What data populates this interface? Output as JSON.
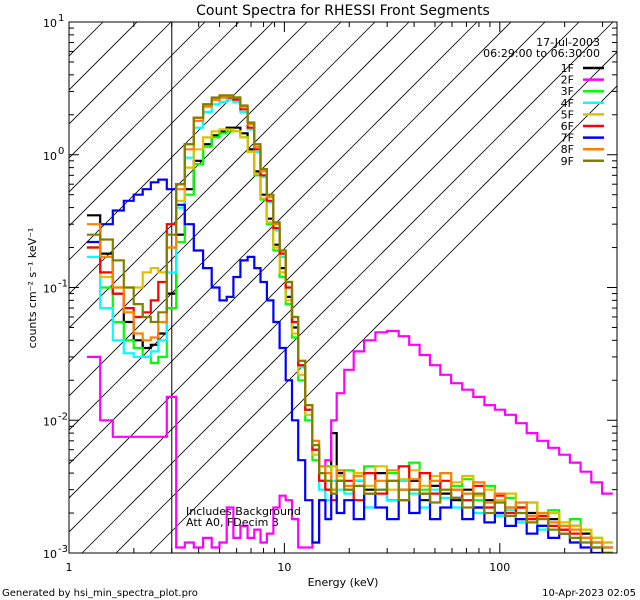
{
  "chart_data": {
    "type": "line",
    "title": "Count Spectra for RHESSI Front Segments",
    "xlabel": "Energy (keV)",
    "ylabel": "counts cm⁻² s⁻¹ keV⁻¹",
    "xscale": "log",
    "yscale": "log",
    "xlim": [
      1,
      350
    ],
    "ylim": [
      0.001,
      10
    ],
    "x_ticks": [
      {
        "value": 1,
        "label": "1"
      },
      {
        "value": 10,
        "label": "10"
      },
      {
        "value": 100,
        "label": "100"
      }
    ],
    "y_ticks": [
      {
        "value": 0.001,
        "base": "10",
        "exp": "-3"
      },
      {
        "value": 0.01,
        "base": "10",
        "exp": "-2"
      },
      {
        "value": 0.1,
        "base": "10",
        "exp": "-1"
      },
      {
        "value": 1,
        "base": "10",
        "exp": "0"
      },
      {
        "value": 10,
        "base": "10",
        "exp": "1"
      }
    ],
    "date": "17-Jul-2003",
    "time_range": "06:29:00 to 06:30:00",
    "annotations": [
      "Includes Background",
      "Att A0, FDecim 3"
    ],
    "excluded_region_max_keV": 3,
    "series": [
      {
        "name": "1F",
        "color": "#000000",
        "x": [
          1.3,
          1.5,
          1.7,
          1.9,
          2.1,
          2.3,
          2.5,
          2.7,
          3.0,
          3.3,
          3.6,
          4.0,
          4.4,
          4.8,
          5.2,
          5.6,
          6.0,
          6.5,
          7.0,
          7.5,
          8.0,
          8.6,
          9.2,
          9.8,
          10.5,
          11.2,
          12.0,
          13.0,
          14.0,
          15.0,
          16.0,
          17.0,
          18.0,
          20.0,
          22.0,
          25.0,
          28.0,
          32.0,
          36.0,
          40.0,
          45.0,
          50.0,
          56.0,
          63.0,
          71.0,
          80.0,
          90.0,
          100.0,
          112.0,
          126.0,
          141.0,
          158.0,
          178.0,
          200.0,
          224.0,
          251.0,
          282.0,
          316.0
        ],
        "y": [
          0.35,
          0.18,
          0.09,
          0.055,
          0.04,
          0.035,
          0.037,
          0.045,
          0.09,
          0.25,
          0.55,
          0.9,
          1.2,
          1.4,
          1.5,
          1.6,
          1.6,
          1.45,
          1.1,
          0.75,
          0.5,
          0.33,
          0.21,
          0.14,
          0.085,
          0.05,
          0.025,
          0.012,
          0.006,
          0.0035,
          0.003,
          0.008,
          0.004,
          0.003,
          0.0035,
          0.003,
          0.004,
          0.0025,
          0.003,
          0.0035,
          0.0025,
          0.0032,
          0.0028,
          0.0025,
          0.003,
          0.0022,
          0.0025,
          0.002,
          0.0022,
          0.0018,
          0.002,
          0.0016,
          0.0018,
          0.0015,
          0.0016,
          0.0014,
          0.0012,
          0.0011
        ]
      },
      {
        "name": "2F",
        "color": "#ff00ff",
        "x": [
          1.3,
          1.5,
          1.7,
          1.9,
          2.1,
          2.3,
          2.5,
          2.7,
          3.0,
          3.3,
          3.6,
          4.0,
          4.4,
          4.8,
          5.2,
          5.6,
          6.0,
          6.5,
          7.0,
          7.5,
          8.0,
          8.6,
          9.2,
          9.8,
          10.5,
          11.2,
          12.0,
          13.0,
          14.0,
          15.0,
          16.0,
          17.0,
          18.0,
          20.0,
          22.0,
          25.0,
          28.0,
          32.0,
          36.0,
          40.0,
          45.0,
          50.0,
          56.0,
          63.0,
          71.0,
          80.0,
          90.0,
          100.0,
          112.0,
          126.0,
          141.0,
          158.0,
          178.0,
          200.0,
          224.0,
          251.0,
          282.0,
          316.0
        ],
        "y": [
          0.03,
          0.01,
          0.0075,
          0.0075,
          0.0075,
          0.0075,
          0.0075,
          0.0075,
          0.015,
          0.0011,
          0.0012,
          0.0011,
          0.0013,
          0.0011,
          0.0012,
          0.0022,
          0.0013,
          0.0016,
          0.0013,
          0.0015,
          0.0012,
          0.0014,
          0.0022,
          0.0027,
          0.0025,
          0.0018,
          0.0011,
          0.0011,
          0.0012,
          0.0025,
          0.005,
          0.01,
          0.016,
          0.024,
          0.033,
          0.04,
          0.046,
          0.047,
          0.043,
          0.037,
          0.031,
          0.026,
          0.022,
          0.019,
          0.017,
          0.015,
          0.013,
          0.012,
          0.011,
          0.0095,
          0.008,
          0.007,
          0.0062,
          0.0055,
          0.0048,
          0.0041,
          0.0034,
          0.0028
        ]
      },
      {
        "name": "3F",
        "color": "#00ff00",
        "x": [
          1.3,
          1.5,
          1.7,
          1.9,
          2.1,
          2.3,
          2.5,
          2.7,
          3.0,
          3.3,
          3.6,
          4.0,
          4.4,
          4.8,
          5.2,
          5.6,
          6.0,
          6.5,
          7.0,
          7.5,
          8.0,
          8.6,
          9.2,
          9.8,
          10.5,
          11.2,
          12.0,
          13.0,
          14.0,
          15.0,
          16.0,
          17.0,
          18.0,
          20.0,
          22.0,
          25.0,
          28.0,
          32.0,
          36.0,
          40.0,
          45.0,
          50.0,
          56.0,
          63.0,
          71.0,
          80.0,
          90.0,
          100.0,
          112.0,
          126.0,
          141.0,
          158.0,
          178.0,
          200.0,
          224.0,
          251.0,
          282.0,
          316.0
        ],
        "y": [
          0.2,
          0.1,
          0.055,
          0.04,
          0.035,
          0.03,
          0.027,
          0.03,
          0.07,
          0.22,
          0.5,
          0.85,
          1.15,
          1.35,
          1.45,
          1.5,
          1.5,
          1.35,
          1.05,
          0.7,
          0.46,
          0.3,
          0.19,
          0.12,
          0.075,
          0.042,
          0.02,
          0.01,
          0.005,
          0.0035,
          0.0045,
          0.003,
          0.0035,
          0.0042,
          0.0035,
          0.0045,
          0.003,
          0.004,
          0.0035,
          0.0048,
          0.003,
          0.0035,
          0.004,
          0.0032,
          0.0036,
          0.0025,
          0.0032,
          0.0024,
          0.0026,
          0.0022,
          0.0024,
          0.0019,
          0.0021,
          0.0016,
          0.0018,
          0.0015,
          0.0013,
          0.0012
        ]
      },
      {
        "name": "4F",
        "color": "#00ffff",
        "x": [
          1.3,
          1.5,
          1.7,
          1.9,
          2.1,
          2.3,
          2.5,
          2.7,
          3.0,
          3.3,
          3.6,
          4.0,
          4.4,
          4.8,
          5.2,
          5.6,
          6.0,
          6.5,
          7.0,
          7.5,
          8.0,
          8.6,
          9.2,
          9.8,
          10.5,
          11.2,
          12.0,
          13.0,
          14.0,
          15.0,
          16.0,
          17.0,
          18.0,
          20.0,
          22.0,
          25.0,
          28.0,
          32.0,
          36.0,
          40.0,
          45.0,
          50.0,
          56.0,
          63.0,
          71.0,
          80.0,
          90.0,
          100.0,
          112.0,
          126.0,
          141.0,
          158.0,
          178.0,
          200.0,
          224.0,
          251.0,
          282.0,
          316.0
        ],
        "y": [
          0.17,
          0.07,
          0.04,
          0.032,
          0.03,
          0.03,
          0.033,
          0.04,
          0.13,
          0.4,
          0.95,
          1.6,
          2.1,
          2.4,
          2.5,
          2.6,
          2.5,
          2.1,
          1.55,
          1.05,
          0.68,
          0.44,
          0.27,
          0.17,
          0.1,
          0.055,
          0.025,
          0.012,
          0.006,
          0.003,
          0.0025,
          0.0035,
          0.003,
          0.0028,
          0.0035,
          0.0022,
          0.003,
          0.0025,
          0.0035,
          0.0028,
          0.0022,
          0.003,
          0.0026,
          0.0022,
          0.0028,
          0.002,
          0.0024,
          0.0019,
          0.0021,
          0.0017,
          0.0019,
          0.0015,
          0.0016,
          0.0014,
          0.0013,
          0.0012,
          0.0011,
          0.001
        ]
      },
      {
        "name": "5F",
        "color": "#e0c000",
        "x": [
          1.3,
          1.5,
          1.7,
          1.9,
          2.1,
          2.3,
          2.5,
          2.7,
          3.0,
          3.3,
          3.6,
          4.0,
          4.4,
          4.8,
          5.2,
          5.6,
          6.0,
          6.5,
          7.0,
          7.5,
          8.0,
          8.6,
          9.2,
          9.8,
          10.5,
          11.2,
          12.0,
          13.0,
          14.0,
          15.0,
          16.0,
          17.0,
          18.0,
          20.0,
          22.0,
          25.0,
          28.0,
          32.0,
          36.0,
          40.0,
          45.0,
          50.0,
          56.0,
          63.0,
          71.0,
          80.0,
          90.0,
          100.0,
          112.0,
          126.0,
          141.0,
          158.0,
          178.0,
          200.0,
          224.0,
          251.0,
          282.0,
          316.0
        ],
        "y": [
          0.2,
          0.12,
          0.1,
          0.1,
          0.1,
          0.13,
          0.14,
          0.13,
          0.2,
          0.45,
          0.8,
          1.1,
          1.35,
          1.5,
          1.55,
          1.55,
          1.5,
          1.35,
          1.05,
          0.72,
          0.47,
          0.31,
          0.2,
          0.13,
          0.08,
          0.045,
          0.022,
          0.011,
          0.0055,
          0.004,
          0.0035,
          0.0045,
          0.0038,
          0.003,
          0.004,
          0.0032,
          0.0045,
          0.003,
          0.0036,
          0.0042,
          0.0032,
          0.0038,
          0.003,
          0.0034,
          0.0038,
          0.0027,
          0.003,
          0.0025,
          0.0028,
          0.0022,
          0.0024,
          0.0019,
          0.002,
          0.0017,
          0.0016,
          0.0015,
          0.0013,
          0.0012
        ]
      },
      {
        "name": "6F",
        "color": "#ff0000",
        "x": [
          1.3,
          1.5,
          1.7,
          1.9,
          2.1,
          2.3,
          2.5,
          2.7,
          3.0,
          3.3,
          3.6,
          4.0,
          4.4,
          4.8,
          5.2,
          5.6,
          6.0,
          6.5,
          7.0,
          7.5,
          8.0,
          8.6,
          9.2,
          9.8,
          10.5,
          11.2,
          12.0,
          13.0,
          14.0,
          15.0,
          16.0,
          17.0,
          18.0,
          20.0,
          22.0,
          25.0,
          28.0,
          32.0,
          36.0,
          40.0,
          45.0,
          50.0,
          56.0,
          63.0,
          71.0,
          80.0,
          90.0,
          100.0,
          112.0,
          126.0,
          141.0,
          158.0,
          178.0,
          200.0,
          224.0,
          251.0,
          282.0,
          316.0
        ],
        "y": [
          0.2,
          0.13,
          0.09,
          0.07,
          0.06,
          0.065,
          0.08,
          0.11,
          0.3,
          0.6,
          1.2,
          1.9,
          2.4,
          2.6,
          2.7,
          2.7,
          2.6,
          2.2,
          1.6,
          1.1,
          0.7,
          0.45,
          0.28,
          0.18,
          0.1,
          0.055,
          0.026,
          0.012,
          0.006,
          0.0035,
          0.003,
          0.0025,
          0.0035,
          0.0035,
          0.0025,
          0.004,
          0.0028,
          0.0035,
          0.0045,
          0.003,
          0.004,
          0.0028,
          0.0035,
          0.003,
          0.0025,
          0.0032,
          0.0022,
          0.0027,
          0.002,
          0.0022,
          0.0018,
          0.0019,
          0.0016,
          0.0015,
          0.0014,
          0.0013,
          0.0011,
          0.001
        ]
      },
      {
        "name": "7F",
        "color": "#0000ff",
        "x": [
          1.3,
          1.5,
          1.7,
          1.9,
          2.1,
          2.3,
          2.5,
          2.7,
          3.0,
          3.3,
          3.6,
          4.0,
          4.4,
          4.8,
          5.2,
          5.6,
          6.0,
          6.5,
          7.0,
          7.5,
          8.0,
          8.6,
          9.2,
          9.8,
          10.5,
          11.2,
          12.0,
          13.0,
          14.0,
          15.0,
          16.0,
          17.0,
          18.0,
          20.0,
          22.0,
          25.0,
          28.0,
          32.0,
          36.0,
          40.0,
          45.0,
          50.0,
          56.0,
          63.0,
          71.0,
          80.0,
          90.0,
          100.0,
          112.0,
          126.0,
          141.0,
          158.0,
          178.0,
          200.0,
          224.0,
          251.0,
          282.0,
          316.0
        ],
        "y": [
          0.22,
          0.3,
          0.38,
          0.45,
          0.5,
          0.55,
          0.62,
          0.65,
          0.55,
          0.42,
          0.3,
          0.19,
          0.14,
          0.1,
          0.08,
          0.085,
          0.12,
          0.16,
          0.17,
          0.14,
          0.11,
          0.08,
          0.055,
          0.035,
          0.02,
          0.01,
          0.005,
          0.0025,
          0.0012,
          0.0025,
          0.0018,
          0.0028,
          0.002,
          0.0025,
          0.0018,
          0.0028,
          0.0022,
          0.0018,
          0.0025,
          0.002,
          0.0028,
          0.0018,
          0.0022,
          0.0026,
          0.0018,
          0.0022,
          0.0017,
          0.002,
          0.0016,
          0.0018,
          0.0014,
          0.0016,
          0.0013,
          0.0014,
          0.0012,
          0.0011,
          0.001,
          0.001
        ]
      },
      {
        "name": "8F",
        "color": "#ff8000",
        "x": [
          1.3,
          1.5,
          1.7,
          1.9,
          2.1,
          2.3,
          2.5,
          2.7,
          3.0,
          3.3,
          3.6,
          4.0,
          4.4,
          4.8,
          5.2,
          5.6,
          6.0,
          6.5,
          7.0,
          7.5,
          8.0,
          8.6,
          9.2,
          9.8,
          10.5,
          11.2,
          12.0,
          13.0,
          14.0,
          15.0,
          16.0,
          17.0,
          18.0,
          20.0,
          22.0,
          25.0,
          28.0,
          32.0,
          36.0,
          40.0,
          45.0,
          50.0,
          56.0,
          63.0,
          71.0,
          80.0,
          90.0,
          100.0,
          112.0,
          126.0,
          141.0,
          158.0,
          178.0,
          200.0,
          224.0,
          251.0,
          282.0,
          316.0
        ],
        "y": [
          0.3,
          0.17,
          0.1,
          0.065,
          0.045,
          0.04,
          0.042,
          0.055,
          0.2,
          0.55,
          1.1,
          1.8,
          2.3,
          2.6,
          2.7,
          2.75,
          2.7,
          2.3,
          1.7,
          1.15,
          0.75,
          0.48,
          0.3,
          0.19,
          0.11,
          0.06,
          0.028,
          0.013,
          0.007,
          0.0045,
          0.004,
          0.003,
          0.0042,
          0.0032,
          0.0038,
          0.0028,
          0.0035,
          0.0042,
          0.003,
          0.0036,
          0.0028,
          0.0035,
          0.004,
          0.003,
          0.0028,
          0.0034,
          0.0024,
          0.0028,
          0.0022,
          0.0024,
          0.0019,
          0.002,
          0.0017,
          0.0016,
          0.0015,
          0.0013,
          0.0012,
          0.0011
        ]
      },
      {
        "name": "9F",
        "color": "#808000",
        "x": [
          1.3,
          1.5,
          1.7,
          1.9,
          2.1,
          2.3,
          2.5,
          2.7,
          3.0,
          3.3,
          3.6,
          4.0,
          4.4,
          4.8,
          5.2,
          5.6,
          6.0,
          6.5,
          7.0,
          7.5,
          8.0,
          8.6,
          9.2,
          9.8,
          10.5,
          11.2,
          12.0,
          13.0,
          14.0,
          15.0,
          16.0,
          17.0,
          18.0,
          20.0,
          22.0,
          25.0,
          28.0,
          32.0,
          36.0,
          40.0,
          45.0,
          50.0,
          56.0,
          63.0,
          71.0,
          80.0,
          90.0,
          100.0,
          112.0,
          126.0,
          141.0,
          158.0,
          178.0,
          200.0,
          224.0,
          251.0,
          282.0,
          316.0
        ],
        "y": [
          0.25,
          0.23,
          0.16,
          0.1,
          0.075,
          0.06,
          0.055,
          0.065,
          0.25,
          0.6,
          1.2,
          1.9,
          2.4,
          2.7,
          2.8,
          2.8,
          2.7,
          2.35,
          1.75,
          1.2,
          0.78,
          0.5,
          0.31,
          0.19,
          0.11,
          0.06,
          0.028,
          0.013,
          0.0065,
          0.004,
          0.0035,
          0.0028,
          0.0035,
          0.003,
          0.0032,
          0.0028,
          0.003,
          0.0035,
          0.0025,
          0.003,
          0.0028,
          0.0024,
          0.003,
          0.0026,
          0.0022,
          0.0028,
          0.002,
          0.0024,
          0.0019,
          0.002,
          0.0017,
          0.0018,
          0.0015,
          0.0014,
          0.0013,
          0.0012,
          0.0011,
          0.001
        ]
      }
    ]
  },
  "footer": {
    "generated_by": "Generated by hsi_min_spectra_plot.pro",
    "timestamp": "10-Apr-2023 02:05"
  }
}
